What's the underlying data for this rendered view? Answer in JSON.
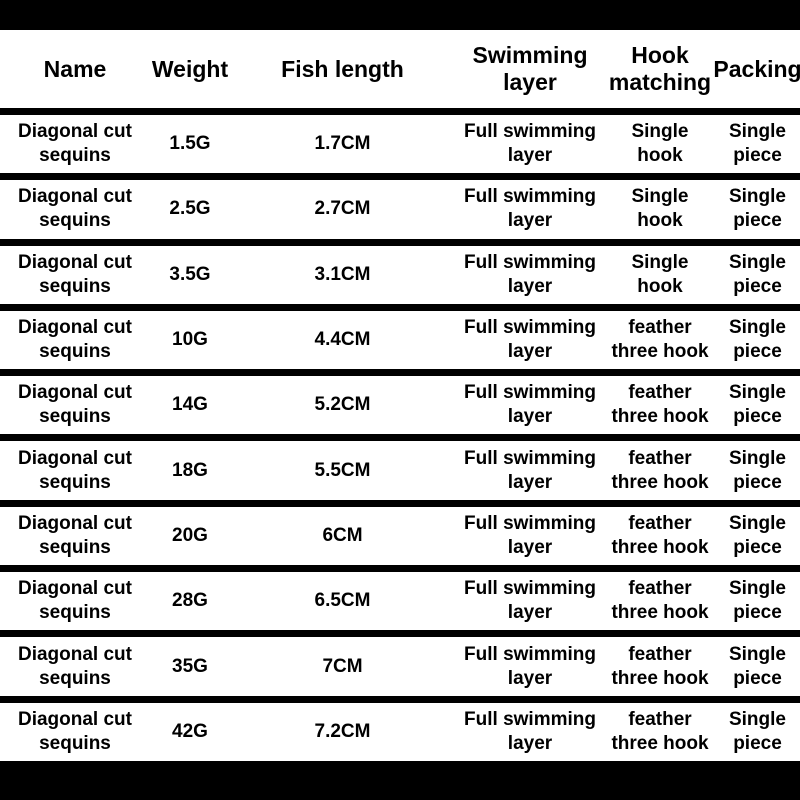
{
  "table": {
    "headers": [
      "Name",
      "Weight",
      "Fish length",
      "Swimming\nlayer",
      "Hook\nmatching",
      "Packing"
    ],
    "rows": [
      [
        "Diagonal cut\nsequins",
        "1.5G",
        "1.7CM",
        "Full swimming\nlayer",
        "Single\nhook",
        "Single\npiece"
      ],
      [
        "Diagonal cut\nsequins",
        "2.5G",
        "2.7CM",
        "Full swimming\nlayer",
        "Single\nhook",
        "Single\npiece"
      ],
      [
        "Diagonal cut\nsequins",
        "3.5G",
        "3.1CM",
        "Full swimming\nlayer",
        "Single\nhook",
        "Single\npiece"
      ],
      [
        "Diagonal cut\nsequins",
        "10G",
        "4.4CM",
        "Full swimming\nlayer",
        "feather\nthree hook",
        "Single\npiece"
      ],
      [
        "Diagonal cut\nsequins",
        "14G",
        "5.2CM",
        "Full swimming\nlayer",
        "feather\nthree hook",
        "Single\npiece"
      ],
      [
        "Diagonal cut\nsequins",
        "18G",
        "5.5CM",
        "Full swimming\nlayer",
        "feather\nthree hook",
        "Single\npiece"
      ],
      [
        "Diagonal cut\nsequins",
        "20G",
        "6CM",
        "Full swimming\nlayer",
        "feather\nthree hook",
        "Single\npiece"
      ],
      [
        "Diagonal cut\nsequins",
        "28G",
        "6.5CM",
        "Full swimming\nlayer",
        "feather\nthree hook",
        "Single\npiece"
      ],
      [
        "Diagonal cut\nsequins",
        "35G",
        "7CM",
        "Full swimming\nlayer",
        "feather\nthree hook",
        "Single\npiece"
      ],
      [
        "Diagonal cut\nsequins",
        "42G",
        "7.2CM",
        "Full swimming\nlayer",
        "feather\nthree hook",
        "Single\npiece"
      ]
    ]
  }
}
